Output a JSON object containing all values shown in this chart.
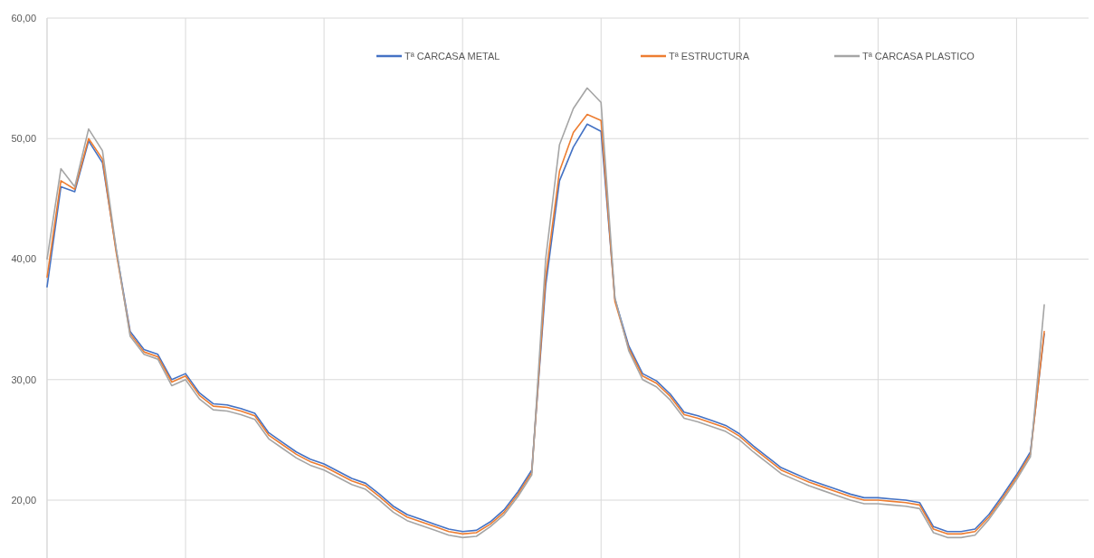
{
  "chart_data": {
    "type": "line",
    "categories": [
      null,
      null,
      null,
      null,
      null,
      null,
      null,
      null,
      null,
      null,
      null,
      null,
      null,
      null,
      null,
      null,
      null,
      null,
      null,
      null,
      null,
      null,
      null,
      null,
      null,
      null,
      null,
      null,
      null,
      null,
      null,
      null,
      null,
      null,
      null,
      null,
      null,
      null,
      null,
      null,
      null,
      null,
      null,
      null,
      null,
      null,
      null,
      null,
      null,
      null,
      null,
      null,
      null,
      null,
      null,
      null,
      null,
      null,
      null,
      null,
      null,
      null,
      null,
      null,
      null,
      null,
      null,
      null,
      null,
      null,
      null,
      null,
      null
    ],
    "series": [
      {
        "name": "Tª CARCASA METAL",
        "color": "#4472c4",
        "values": [
          37.7,
          46.0,
          45.6,
          49.8,
          48.0,
          40.7,
          34.0,
          32.5,
          32.1,
          30.0,
          30.5,
          28.9,
          28.0,
          27.9,
          27.6,
          27.2,
          25.6,
          24.8,
          24.0,
          23.4,
          23.0,
          22.4,
          21.8,
          21.4,
          20.5,
          19.5,
          18.8,
          18.4,
          18.0,
          17.6,
          17.4,
          17.5,
          18.2,
          19.2,
          20.7,
          22.5,
          37.8,
          46.5,
          49.3,
          51.2,
          50.6,
          36.7,
          32.8,
          30.5,
          29.9,
          28.8,
          27.3,
          27.0,
          26.6,
          26.2,
          25.5,
          24.5,
          23.6,
          22.7,
          22.2,
          21.7,
          21.3,
          20.9,
          20.5,
          20.2,
          20.2,
          20.1,
          20.0,
          19.8,
          17.8,
          17.4,
          17.4,
          17.6,
          18.8,
          20.4,
          22.1,
          24.0,
          33.8
        ]
      },
      {
        "name": "Tª ESTRUCTURA",
        "color": "#ed7d31",
        "values": [
          38.5,
          46.5,
          45.8,
          50.0,
          48.3,
          40.5,
          33.8,
          32.3,
          31.9,
          29.8,
          30.3,
          28.7,
          27.8,
          27.7,
          27.4,
          27.0,
          25.4,
          24.6,
          23.8,
          23.2,
          22.8,
          22.2,
          21.6,
          21.2,
          20.3,
          19.3,
          18.6,
          18.2,
          17.8,
          17.4,
          17.2,
          17.3,
          18.0,
          19.0,
          20.5,
          22.3,
          38.5,
          47.3,
          50.5,
          52.0,
          51.5,
          36.5,
          32.6,
          30.3,
          29.7,
          28.6,
          27.1,
          26.8,
          26.4,
          26.0,
          25.3,
          24.3,
          23.4,
          22.5,
          22.0,
          21.5,
          21.1,
          20.7,
          20.3,
          20.0,
          20.0,
          19.9,
          19.8,
          19.6,
          17.6,
          17.2,
          17.2,
          17.4,
          18.6,
          20.2,
          21.9,
          23.8,
          34.0
        ]
      },
      {
        "name": "Tª CARCASA PLASTICO",
        "color": "#a5a5a5",
        "values": [
          40.0,
          47.5,
          46.0,
          50.8,
          49.0,
          40.8,
          33.6,
          32.1,
          31.7,
          29.5,
          30.0,
          28.4,
          27.5,
          27.4,
          27.1,
          26.7,
          25.1,
          24.3,
          23.5,
          22.9,
          22.5,
          21.9,
          21.3,
          20.9,
          20.0,
          19.0,
          18.3,
          17.9,
          17.5,
          17.1,
          16.9,
          17.0,
          17.8,
          18.8,
          20.3,
          22.1,
          40.0,
          49.5,
          52.5,
          54.2,
          53.0,
          36.8,
          32.4,
          30.0,
          29.4,
          28.3,
          26.8,
          26.5,
          26.1,
          25.7,
          25.0,
          24.0,
          23.1,
          22.2,
          21.7,
          21.2,
          20.8,
          20.4,
          20.0,
          19.7,
          19.7,
          19.6,
          19.5,
          19.3,
          17.3,
          16.9,
          16.9,
          17.1,
          18.4,
          20.0,
          21.7,
          23.6,
          36.2
        ]
      }
    ],
    "ylim": [
      15.2,
      60
    ],
    "yticks": [
      {
        "value": 20,
        "label": "20,00"
      },
      {
        "value": 30,
        "label": "30,00"
      },
      {
        "value": 40,
        "label": "40,00"
      },
      {
        "value": 50,
        "label": "50,00"
      },
      {
        "value": 60,
        "label": "60,00"
      }
    ],
    "grid": true,
    "legend": "top",
    "tick_labels": "y"
  }
}
